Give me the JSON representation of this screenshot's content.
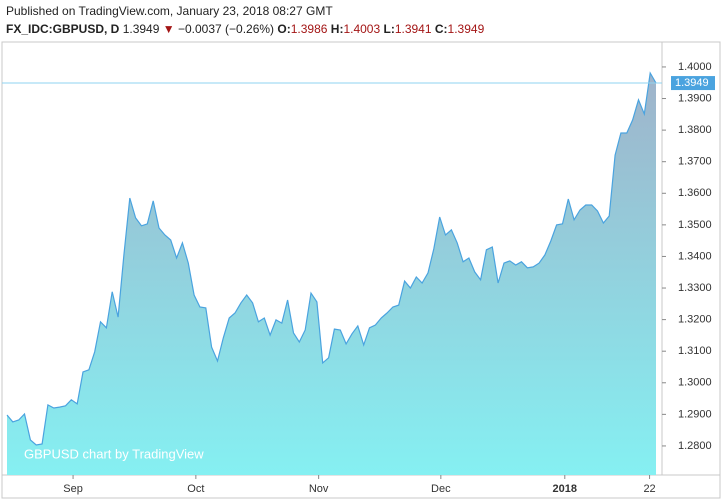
{
  "header": {
    "published": "Published on TradingView.com, January 23, 2018 08:27 GMT",
    "symbol": "FX_IDC:GBPUSD, D",
    "price": "1.3949",
    "arrow": "▼",
    "change": "−0.0037 (−0.26%)",
    "open_label": "O:",
    "open": "1.3986",
    "high_label": "H:",
    "high": "1.4003",
    "low_label": "L:",
    "low": "1.3941",
    "close_label": "C:",
    "close": "1.3949"
  },
  "chart_data": {
    "type": "area",
    "watermark": "GBPUSD chart by TradingView",
    "line_color": "#4aa3df",
    "fill_top": "#9fb3ca",
    "fill_bottom": "#85f0f2",
    "values": [
      1.2898,
      1.2876,
      1.2882,
      1.2901,
      1.2819,
      1.2803,
      1.2806,
      1.293,
      1.292,
      1.2923,
      1.2927,
      1.2946,
      1.2933,
      1.3034,
      1.3041,
      1.3098,
      1.3193,
      1.3174,
      1.3288,
      1.3208,
      1.3405,
      1.3585,
      1.3522,
      1.3497,
      1.3503,
      1.3576,
      1.349,
      1.3468,
      1.3452,
      1.3395,
      1.3443,
      1.3379,
      1.3278,
      1.324,
      1.3237,
      1.3113,
      1.3069,
      1.3142,
      1.3205,
      1.3221,
      1.3253,
      1.3278,
      1.3253,
      1.3193,
      1.3205,
      1.3151,
      1.3199,
      1.3189,
      1.3262,
      1.3158,
      1.3129,
      1.3167,
      1.3284,
      1.3256,
      1.3063,
      1.3079,
      1.317,
      1.3167,
      1.3123,
      1.3155,
      1.318,
      1.312,
      1.3174,
      1.3183,
      1.3205,
      1.3221,
      1.324,
      1.3246,
      1.3322,
      1.33,
      1.3335,
      1.3316,
      1.3348,
      1.3424,
      1.3525,
      1.3468,
      1.3484,
      1.3443,
      1.3383,
      1.3395,
      1.3351,
      1.3326,
      1.3421,
      1.343,
      1.3316,
      1.3379,
      1.3386,
      1.3373,
      1.3383,
      1.3364,
      1.3367,
      1.3379,
      1.3405,
      1.3449,
      1.35,
      1.3503,
      1.3582,
      1.3516,
      1.3547,
      1.3563,
      1.3563,
      1.3544,
      1.3506,
      1.3528,
      1.3721,
      1.3791,
      1.3791,
      1.3832,
      1.3896,
      1.3851,
      1.3981,
      1.3949
    ],
    "xlim": [
      0,
      111
    ],
    "xticks": [
      {
        "value": 11.3,
        "label": "Sep"
      },
      {
        "value": 32.3,
        "label": "Oct"
      },
      {
        "value": 53.3,
        "label": "Nov"
      },
      {
        "value": 74.2,
        "label": "Dec"
      },
      {
        "value": 95.4,
        "label": "2018"
      },
      {
        "value": 109.9,
        "label": "22"
      }
    ],
    "ylim": [
      1.2708,
      1.4079
    ],
    "yticks": [
      {
        "value": 1.28,
        "label": "1.2800"
      },
      {
        "value": 1.29,
        "label": "1.2900"
      },
      {
        "value": 1.3,
        "label": "1.3000"
      },
      {
        "value": 1.31,
        "label": "1.3100"
      },
      {
        "value": 1.32,
        "label": "1.3200"
      },
      {
        "value": 1.33,
        "label": "1.3300"
      },
      {
        "value": 1.34,
        "label": "1.3400"
      },
      {
        "value": 1.35,
        "label": "1.3500"
      },
      {
        "value": 1.36,
        "label": "1.3600"
      },
      {
        "value": 1.37,
        "label": "1.3700"
      },
      {
        "value": 1.38,
        "label": "1.3800"
      },
      {
        "value": 1.39,
        "label": "1.3900"
      },
      {
        "value": 1.4,
        "label": "1.4000"
      }
    ],
    "last_value": 1.3949
  }
}
